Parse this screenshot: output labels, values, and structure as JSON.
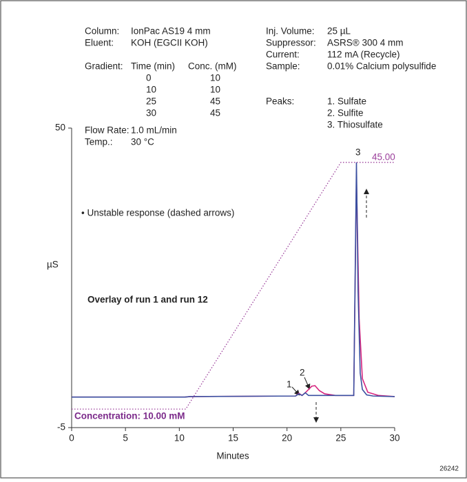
{
  "chart_data": {
    "type": "line",
    "y_label": "µS",
    "x_label": "Minutes",
    "xlim": [
      0,
      30
    ],
    "xticks": [
      0,
      5,
      10,
      15,
      20,
      25,
      30
    ],
    "ylim": [
      -5,
      50
    ],
    "yticks": [
      -5,
      50
    ],
    "series": [
      {
        "color": "#d6247e",
        "x": [
          0,
          10.5,
          11,
          20.8,
          21.1,
          21.4,
          21.8,
          22.3,
          22.6,
          23.0,
          23.5,
          24.5,
          26.2,
          26.45,
          26.7,
          27.0,
          27.5,
          28.5,
          30
        ],
        "values": [
          0.6,
          0.6,
          0.7,
          0.8,
          1.3,
          0.9,
          1.6,
          2.6,
          2.7,
          1.8,
          1.2,
          0.9,
          0.9,
          41,
          15,
          4,
          1.5,
          0.9,
          0.7
        ]
      },
      {
        "color": "#3a4fa0",
        "x": [
          0,
          10.5,
          11,
          20.8,
          21.1,
          21.4,
          21.7,
          22.0,
          22.3,
          26.2,
          26.45,
          26.6,
          26.8,
          27.0,
          27.4,
          28,
          30
        ],
        "values": [
          0.6,
          0.6,
          0.7,
          0.8,
          1.2,
          0.9,
          1.4,
          0.9,
          0.9,
          0.9,
          43.7,
          20,
          5,
          2,
          1,
          0.8,
          0.7
        ]
      },
      {
        "color": "#9b3f9b",
        "dotted": true,
        "x": [
          0,
          10.6,
          25,
          30
        ],
        "values": [
          -1.6,
          -1.6,
          43.7,
          43.7
        ]
      }
    ],
    "conditions_left": [
      [
        "Column:",
        "IonPac AS19 4 mm"
      ],
      [
        "Eluent:",
        "KOH (EGCII KOH)"
      ]
    ],
    "gradient_table": {
      "label": "Gradient:",
      "header": [
        "Time (min)",
        "Conc. (mM)"
      ],
      "rows": [
        [
          0,
          10
        ],
        [
          10,
          10
        ],
        [
          25,
          45
        ],
        [
          30,
          45
        ]
      ]
    },
    "conditions_left2": [
      [
        "Flow Rate:",
        "1.0 mL/min"
      ],
      [
        "Temp.:",
        "30 °C"
      ]
    ],
    "conditions_right": [
      [
        "Inj. Volume:",
        "25 µL"
      ],
      [
        "Suppressor:",
        "ASRS® 300 4 mm"
      ],
      [
        "Current:",
        "112 mA (Recycle)"
      ],
      [
        "Sample:",
        "0.01% Calcium polysulfide"
      ]
    ],
    "peaks": {
      "label": "Peaks:",
      "items": [
        "1. Sulfate",
        "2. Sulfite",
        "3. Thiosulfate"
      ]
    },
    "peak_labels": [
      "1",
      "2",
      "3"
    ],
    "note": "• Unstable response (dashed arrows)",
    "overlay": "Overlay of run 1 and run 12",
    "concentration_start": "Concentration: 10.00 mM",
    "concentration_end": "45.00",
    "figure_id": "26242"
  }
}
